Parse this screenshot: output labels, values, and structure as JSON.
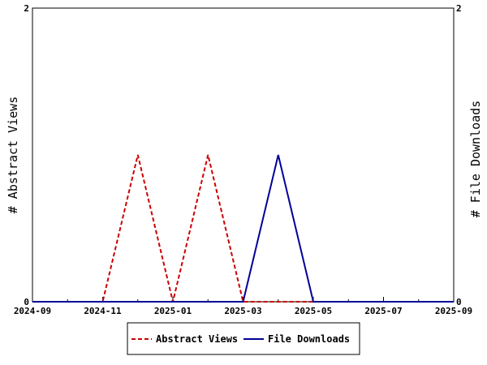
{
  "chart_data": {
    "type": "line",
    "xlabel": "",
    "ylabel_left": "# Abstract Views",
    "ylabel_right": "# File Downloads",
    "x_ticks": [
      "2024-09",
      "2024-11",
      "2025-01",
      "2025-03",
      "2025-05",
      "2025-07",
      "2025-09"
    ],
    "xlim": [
      "2024-09",
      "2025-09"
    ],
    "ylim_left": [
      0,
      2
    ],
    "ylim_right": [
      0,
      2
    ],
    "y_ticks_left": [
      "0",
      "2"
    ],
    "y_ticks_right": [
      "0",
      "2"
    ],
    "grid": false,
    "legend_position": "bottom-center",
    "series": [
      {
        "name": "Abstract Views",
        "axis": "left",
        "style": "dashed",
        "color": "#cc0000",
        "x": [
          "2024-09",
          "2024-10",
          "2024-11",
          "2024-12",
          "2025-01",
          "2025-02",
          "2025-03",
          "2025-04",
          "2025-05",
          "2025-06",
          "2025-07",
          "2025-08",
          "2025-09"
        ],
        "values": [
          0,
          0,
          0,
          1,
          0,
          1,
          0,
          0,
          0,
          0,
          0,
          0,
          0
        ]
      },
      {
        "name": "File Downloads",
        "axis": "right",
        "style": "solid",
        "color": "#000099",
        "x": [
          "2024-09",
          "2024-10",
          "2024-11",
          "2024-12",
          "2025-01",
          "2025-02",
          "2025-03",
          "2025-04",
          "2025-05",
          "2025-06",
          "2025-07",
          "2025-08",
          "2025-09"
        ],
        "values": [
          0,
          0,
          0,
          0,
          0,
          0,
          0,
          1,
          0,
          0,
          0,
          0,
          0
        ]
      }
    ]
  }
}
